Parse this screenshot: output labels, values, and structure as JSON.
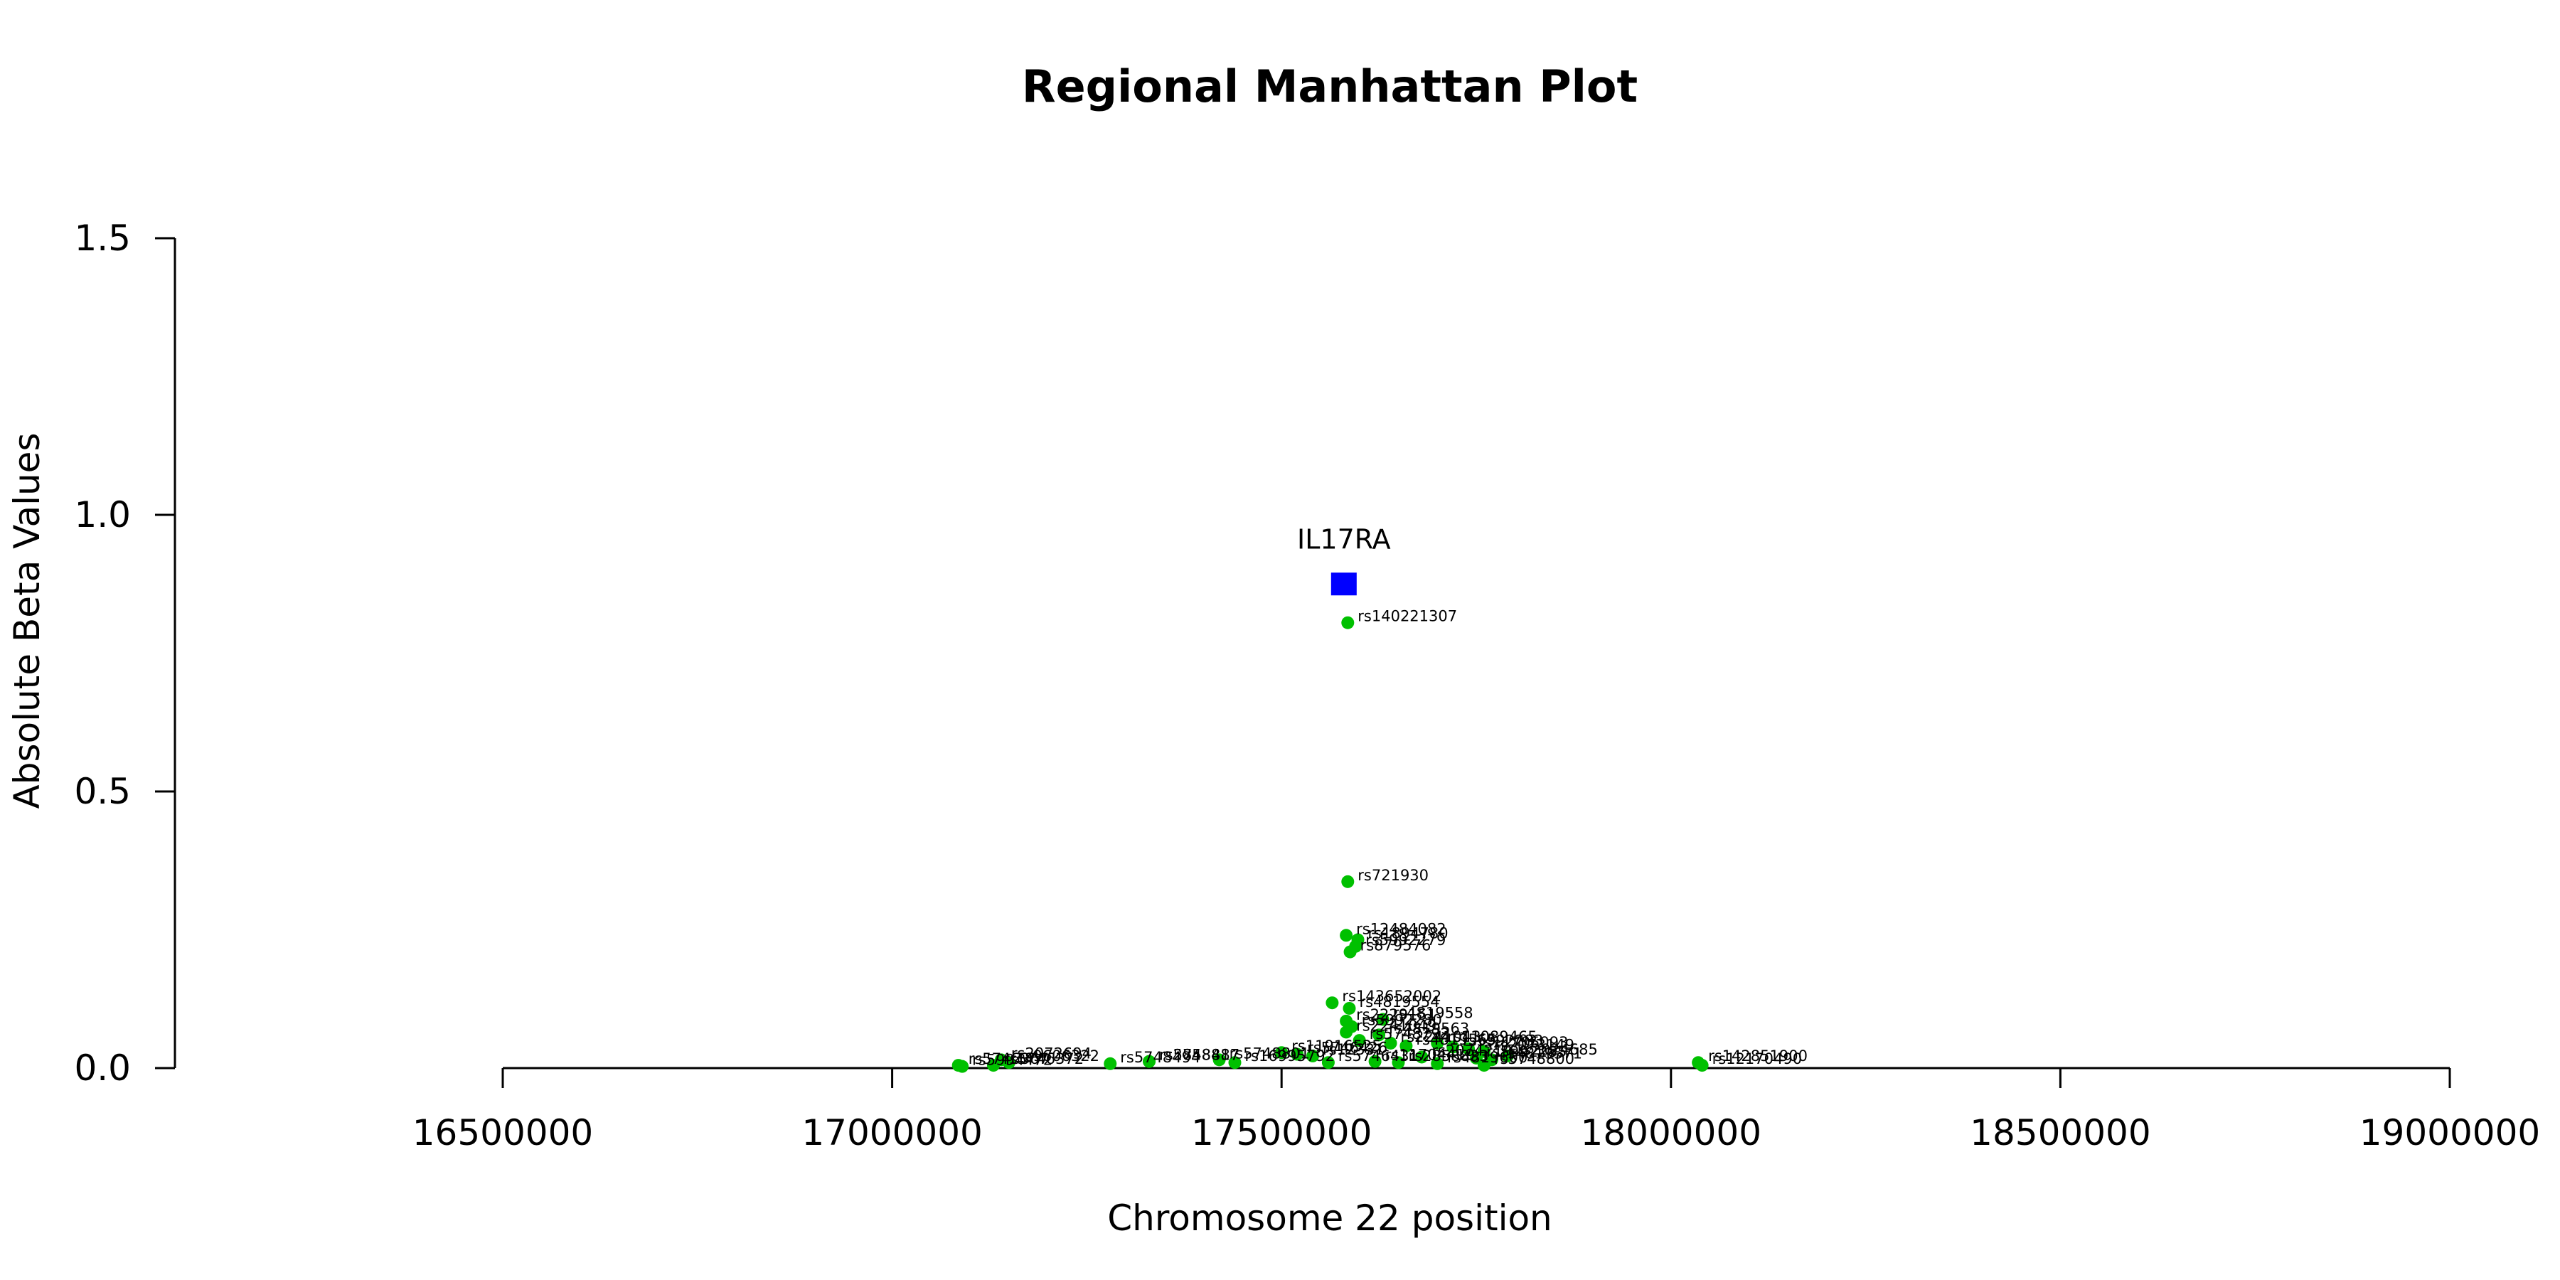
{
  "chart_data": {
    "type": "scatter",
    "title": "Regional Manhattan Plot",
    "xlabel": "Chromosome 22 position",
    "ylabel": "Absolute Beta Values",
    "xlim": [
      16500000,
      19000000
    ],
    "ylim": [
      0,
      1.5
    ],
    "x_ticks": [
      16500000,
      17000000,
      17500000,
      18000000,
      18500000,
      19000000
    ],
    "x_tick_labels": [
      "16500000",
      "17000000",
      "17500000",
      "18000000",
      "18500000",
      "19000000"
    ],
    "y_ticks": [
      0,
      0.5,
      1.0,
      1.5
    ],
    "y_tick_labels": [
      "0.0",
      "0.5",
      "1.0",
      "1.5"
    ],
    "grid": false,
    "colors": {
      "snp": "#00c000",
      "gene": "#0000ff"
    },
    "gene": {
      "name": "IL17RA",
      "x": 17580000,
      "y": 0.875
    },
    "series": [
      {
        "points": [
          {
            "label": "rs140221307",
            "x": 17585000,
            "y": 0.805
          },
          {
            "label": "rs721930",
            "x": 17585000,
            "y": 0.337
          },
          {
            "label": "rs12484082",
            "x": 17583000,
            "y": 0.24
          },
          {
            "label": "rs1894780",
            "x": 17598000,
            "y": 0.232
          },
          {
            "label": "rs5992279",
            "x": 17595000,
            "y": 0.22
          },
          {
            "label": "rs879576",
            "x": 17588000,
            "y": 0.21
          },
          {
            "label": "rs143652002",
            "x": 17565000,
            "y": 0.118
          },
          {
            "label": "rs4819554",
            "x": 17587000,
            "y": 0.108
          },
          {
            "label": "rs4819558",
            "x": 17630000,
            "y": 0.088
          },
          {
            "label": "rs2229151",
            "x": 17583000,
            "y": 0.085
          },
          {
            "label": "rs5992280",
            "x": 17590000,
            "y": 0.075
          },
          {
            "label": "rs2241049",
            "x": 17583000,
            "y": 0.065
          },
          {
            "label": "rs4819563",
            "x": 17625000,
            "y": 0.06
          },
          {
            "label": "rs5748792",
            "x": 17600000,
            "y": 0.05
          },
          {
            "label": "rs2241043",
            "x": 17640000,
            "y": 0.045
          },
          {
            "label": "rs11089465",
            "x": 17700000,
            "y": 0.045
          },
          {
            "label": "rs4819565",
            "x": 17660000,
            "y": 0.04
          },
          {
            "label": "rs5992283",
            "x": 17720000,
            "y": 0.038
          },
          {
            "label": "rs11705093",
            "x": 17740000,
            "y": 0.035
          },
          {
            "label": "rs2073149",
            "x": 17760000,
            "y": 0.03
          },
          {
            "label": "rs11916525",
            "x": 17500000,
            "y": 0.028
          },
          {
            "label": "rs5746426",
            "x": 17520000,
            "y": 0.025
          },
          {
            "label": "rs12331",
            "x": 17540000,
            "y": 0.022
          },
          {
            "label": "rs2024685",
            "x": 17790000,
            "y": 0.022
          },
          {
            "label": "rs2074219",
            "x": 17680000,
            "y": 0.02
          },
          {
            "label": "rs5992285",
            "x": 17750000,
            "y": 0.018
          },
          {
            "label": "rs4819571",
            "x": 17770000,
            "y": 0.015
          },
          {
            "label": "rs11704419",
            "x": 17620000,
            "y": 0.012
          },
          {
            "label": "rs5746431",
            "x": 17560000,
            "y": 0.01
          },
          {
            "label": "rs2858833",
            "x": 17650000,
            "y": 0.01
          },
          {
            "label": "rs4819600",
            "x": 17700000,
            "y": 0.008
          },
          {
            "label": "rs5748800",
            "x": 17760000,
            "y": 0.005
          },
          {
            "label": "rs5748801",
            "x": 17420000,
            "y": 0.015
          },
          {
            "label": "rs16995792",
            "x": 17440000,
            "y": 0.01
          },
          {
            "label": "rs2858817",
            "x": 17330000,
            "y": 0.012
          },
          {
            "label": "rs5748487",
            "x": 17330000,
            "y": 0.012
          },
          {
            "label": "rs5748494",
            "x": 17280000,
            "y": 0.008
          },
          {
            "label": "rs2072694",
            "x": 17140000,
            "y": 0.015
          },
          {
            "label": "rs9606322",
            "x": 17150000,
            "y": 0.01
          },
          {
            "label": "rs5746372",
            "x": 17130000,
            "y": 0.005
          },
          {
            "label": "rs5746367",
            "x": 17085000,
            "y": 0.005
          },
          {
            "label": "rs5994472",
            "x": 17090000,
            "y": 0.003
          },
          {
            "label": "rs142851900",
            "x": 18035000,
            "y": 0.01
          },
          {
            "label": "rs12170490",
            "x": 18040000,
            "y": 0.005
          }
        ]
      }
    ]
  }
}
